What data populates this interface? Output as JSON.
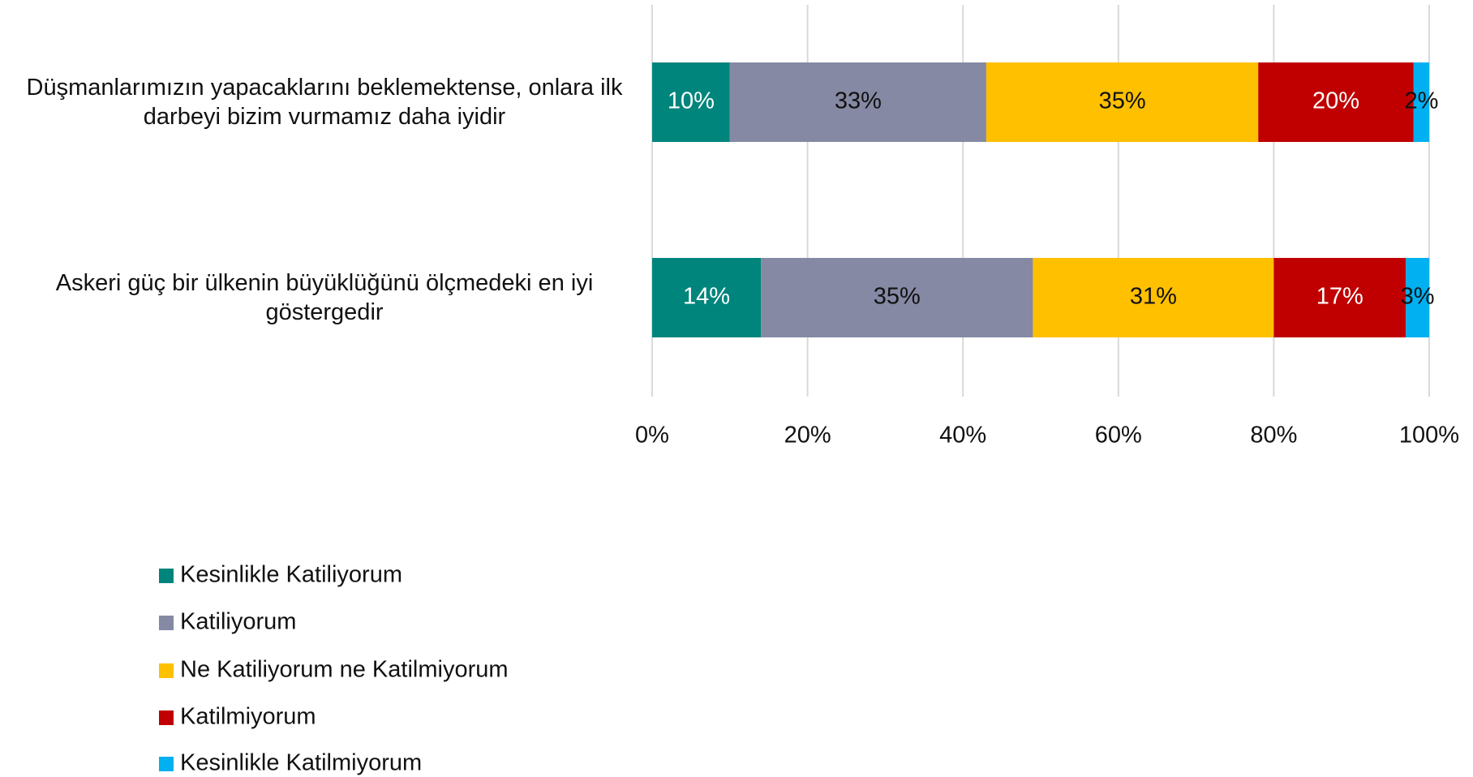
{
  "chart_data": {
    "type": "stacked_bar_horizontal",
    "categories": [
      "Düşmanlarımızın yapacaklarını beklemektense, onlara ilk darbeyi bizim vurmamız daha iyidir",
      "Askeri güç bir ülkenin büyüklüğünü ölçmedeki en iyi göstergedir"
    ],
    "series": [
      {
        "name": "Kesinlikle Katiliyorum",
        "color": "#00857c",
        "values": [
          10,
          14
        ],
        "value_labels": [
          "10%",
          "14%"
        ]
      },
      {
        "name": "Katiliyorum",
        "color": "#8589a3",
        "values": [
          33,
          35
        ],
        "value_labels": [
          "33%",
          "35%"
        ]
      },
      {
        "name": "Ne Katiliyorum ne Katilmiyorum",
        "color": "#ffc000",
        "values": [
          35,
          31
        ],
        "value_labels": [
          "35%",
          "31%"
        ]
      },
      {
        "name": "Katilmiyorum",
        "color": "#c00000",
        "values": [
          20,
          17
        ],
        "value_labels": [
          "20%",
          "17%"
        ]
      },
      {
        "name": "Kesinlikle Katilmiyorum",
        "color": "#00b0f0",
        "values": [
          2,
          3
        ],
        "value_labels": [
          "2%",
          "3%"
        ]
      }
    ],
    "xlim": [
      0,
      100
    ],
    "xticks": [
      {
        "value": 0,
        "label": "0%"
      },
      {
        "value": 20,
        "label": "20%"
      },
      {
        "value": 40,
        "label": "40%"
      },
      {
        "value": 60,
        "label": "60%"
      },
      {
        "value": 80,
        "label": "80%"
      },
      {
        "value": 100,
        "label": "100%"
      }
    ],
    "grid": true,
    "legend": "bottom-left"
  }
}
